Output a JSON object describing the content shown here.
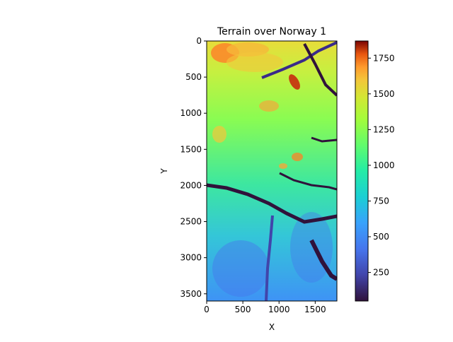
{
  "chart_data": {
    "type": "heatmap",
    "title": "Terrain over Norway 1",
    "xlabel": "X",
    "ylabel": "Y",
    "xlim": [
      0,
      1800
    ],
    "ylim": [
      3600,
      0
    ],
    "x_ticks": [
      0,
      500,
      1000,
      1500
    ],
    "y_ticks": [
      0,
      500,
      1000,
      1500,
      2000,
      2500,
      3000,
      3500
    ],
    "colormap": "turbo",
    "colorbar": {
      "range": [
        50,
        1870
      ],
      "ticks": [
        250,
        500,
        750,
        1000,
        1250,
        1500,
        1750
      ]
    },
    "grid": false
  }
}
